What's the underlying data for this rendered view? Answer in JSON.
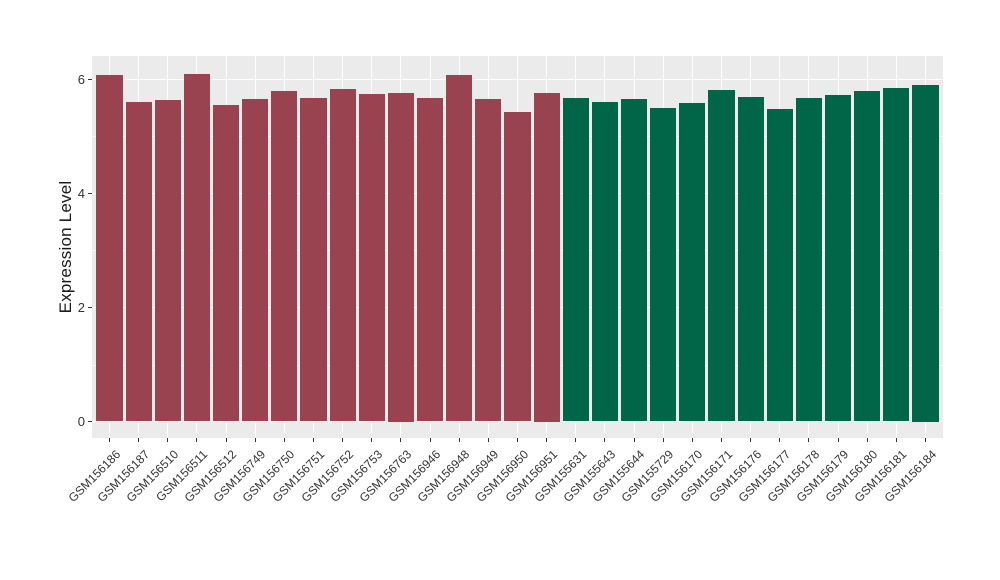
{
  "chart_data": {
    "type": "bar",
    "title": "",
    "ylabel": "Expression Level",
    "xlabel": "",
    "categories": [
      "GSM156186",
      "GSM156187",
      "GSM156510",
      "GSM156511",
      "GSM156512",
      "GSM156749",
      "GSM156750",
      "GSM156751",
      "GSM156752",
      "GSM156753",
      "GSM156763",
      "GSM156946",
      "GSM156948",
      "GSM156949",
      "GSM156950",
      "GSM156951",
      "GSM155631",
      "GSM155643",
      "GSM155644",
      "GSM155729",
      "GSM156170",
      "GSM156171",
      "GSM156176",
      "GSM156177",
      "GSM156178",
      "GSM156179",
      "GSM156180",
      "GSM156181",
      "GSM156184"
    ],
    "values": [
      6.08,
      5.6,
      5.64,
      6.1,
      5.55,
      5.65,
      5.79,
      5.68,
      5.83,
      5.74,
      5.77,
      5.67,
      6.07,
      5.65,
      5.43,
      5.77,
      5.68,
      5.6,
      5.66,
      5.5,
      5.58,
      5.82,
      5.69,
      5.48,
      5.67,
      5.73,
      5.8,
      5.85,
      5.91
    ],
    "group_split_index": 16,
    "group_colors": [
      "#9A4350",
      "#006647"
    ],
    "yticks": [
      0,
      2,
      4,
      6
    ],
    "yminor": [
      1,
      3,
      5
    ],
    "ylim": [
      -0.29,
      6.41
    ],
    "grid": true,
    "legend_position": "none",
    "panel_bg": "#EBEBEB",
    "grid_color": "#FFFFFF",
    "axis_text_color": "#333333",
    "background": "#FFFFFF"
  }
}
